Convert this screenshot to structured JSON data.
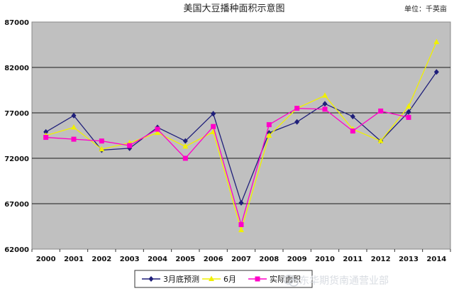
{
  "chart_data": {
    "type": "line",
    "title": "美国大豆播种面积示意图",
    "unit_label": "单位：千英亩",
    "categories": [
      "2000",
      "2001",
      "2002",
      "2003",
      "2004",
      "2005",
      "2006",
      "2007",
      "2008",
      "2009",
      "2010",
      "2011",
      "2012",
      "2013",
      "2014"
    ],
    "series": [
      {
        "name": "3月底预测",
        "color": "#1f1f7a",
        "marker": "diamond",
        "values": [
          74900,
          76700,
          72900,
          73100,
          75400,
          73900,
          76900,
          67100,
          74800,
          76000,
          78000,
          76600,
          73900,
          77100,
          81500
        ]
      },
      {
        "name": "6月",
        "color": "#f0f000",
        "marker": "triangle",
        "values": [
          74500,
          75400,
          73000,
          73700,
          74800,
          73300,
          74900,
          64100,
          74500,
          77500,
          78900,
          75200,
          73900,
          77700,
          84800
        ]
      },
      {
        "name": "实际面积",
        "color": "#ff00c8",
        "marker": "square",
        "values": [
          74300,
          74100,
          73900,
          73400,
          75200,
          72000,
          75500,
          64700,
          75700,
          77500,
          77400,
          75000,
          77200,
          76500,
          null
        ]
      }
    ],
    "y_ticks": [
      62000,
      67000,
      72000,
      77000,
      82000,
      87000
    ],
    "ylim": [
      62000,
      87000
    ],
    "grid": true,
    "legend": "bottom-center"
  },
  "watermark": "东华期货南通营业部",
  "icons": {
    "watermark_icon": "wechat-icon"
  }
}
